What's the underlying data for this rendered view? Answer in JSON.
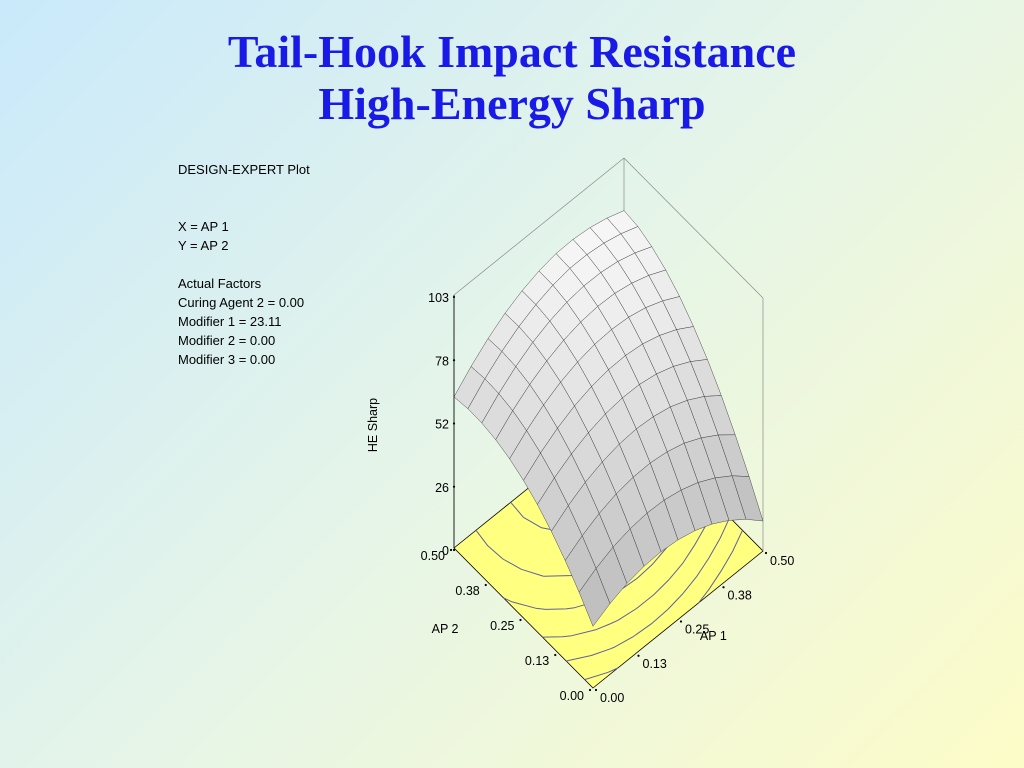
{
  "slide": {
    "title_line1": "Tail-Hook Impact Resistance",
    "title_line2": "High-Energy Sharp"
  },
  "info_panel": {
    "header": "DESIGN-EXPERT Plot",
    "x_label": "X = AP 1",
    "y_label": "Y = AP 2",
    "factors_header": "Actual Factors",
    "factors": [
      "Curing Agent 2 = 0.00",
      "Modifier 1 = 23.11",
      "Modifier 2 = 0.00",
      "Modifier 3 = 0.00"
    ]
  },
  "colors": {
    "title": "#1a1ae6",
    "contour_fill": "#ffff80",
    "contour_line": "#6060a0",
    "surface_light": "#ffffff",
    "surface_dark": "#7a7a7a"
  },
  "chart_data": {
    "type": "surface3d",
    "title": "",
    "xlabel": "AP 1",
    "ylabel": "AP 2",
    "zlabel": "HE Sharp",
    "x_ticks": [
      "0.00",
      "0.13",
      "0.25",
      "0.38",
      "0.50"
    ],
    "y_ticks": [
      "0.00",
      "0.13",
      "0.25",
      "0.38",
      "0.50"
    ],
    "z_ticks": [
      "0",
      "26",
      "52",
      "78",
      "103"
    ],
    "xlim": [
      0,
      0.5
    ],
    "ylim": [
      0,
      0.5
    ],
    "zlim": [
      0,
      103
    ],
    "grid_points": [
      0,
      0.05,
      0.1,
      0.15,
      0.2,
      0.25,
      0.3,
      0.35,
      0.4,
      0.45,
      0.5
    ],
    "z_by_ap2_rows": [
      [
        25.1,
        28.8,
        31.4,
        32.8,
        33.2,
        32.4,
        30.6,
        27.7,
        23.6,
        18.5,
        12.2
      ],
      [
        33.3,
        37.4,
        40.5,
        42.4,
        43.2,
        42.9,
        41.4,
        38.9,
        35.2,
        30.5,
        24.6
      ],
      [
        40.5,
        45.0,
        48.5,
        50.9,
        52.1,
        52.3,
        51.3,
        49.2,
        45.8,
        41.4,
        35.9
      ],
      [
        46.7,
        51.6,
        55.5,
        58.2,
        59.9,
        60.5,
        59.9,
        58.3,
        55.4,
        51.4,
        46.2
      ],
      [
        51.9,
        57.2,
        61.3,
        64.4,
        66.5,
        67.4,
        67.3,
        66.0,
        63.5,
        59.9,
        55.2
      ],
      [
        56.0,
        61.6,
        66.1,
        69.6,
        71.9,
        73.2,
        73.4,
        72.5,
        70.4,
        67.2,
        62.9
      ],
      [
        59.1,
        65.0,
        69.9,
        73.6,
        76.2,
        77.8,
        78.3,
        77.7,
        76.0,
        73.2,
        69.4
      ],
      [
        61.2,
        67.4,
        72.5,
        76.5,
        79.4,
        81.2,
        82.0,
        81.7,
        80.3,
        77.9,
        74.5
      ],
      [
        62.3,
        68.7,
        74.1,
        78.4,
        81.5,
        83.6,
        84.6,
        84.5,
        83.4,
        81.3,
        78.3
      ],
      [
        62.4,
        69.0,
        74.6,
        79.1,
        82.5,
        84.8,
        86.1,
        86.1,
        85.2,
        83.4,
        80.8
      ],
      [
        61.5,
        68.3,
        74.1,
        78.8,
        82.4,
        84.9,
        86.4,
        86.6,
        85.8,
        84.1,
        81.6
      ]
    ],
    "contour_levels": [
      30,
      40,
      50,
      60,
      70,
      80
    ]
  }
}
